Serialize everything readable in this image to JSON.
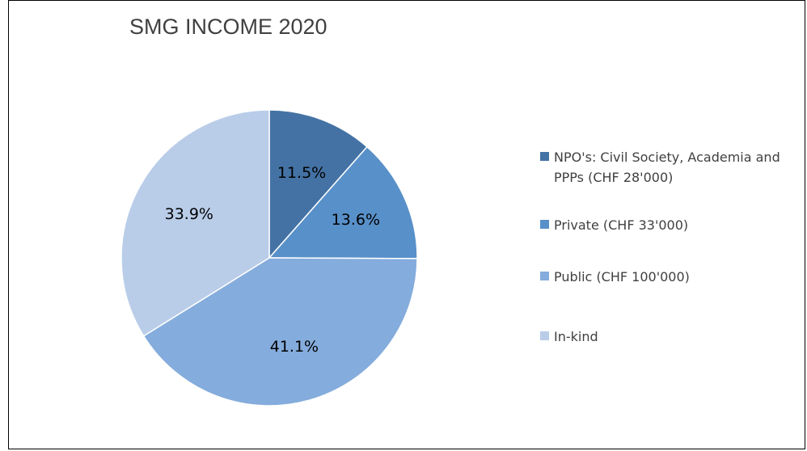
{
  "chart_data": {
    "type": "pie",
    "title": "SMG INCOME 2020",
    "slices": [
      {
        "label": "NPO's: Civil Society, Academia and PPPs (CHF 28'000)",
        "value": 11.5,
        "value_label": "11.5%",
        "color": "#4472a4"
      },
      {
        "label": "Private (CHF 33'000)",
        "value": 13.6,
        "value_label": "13.6%",
        "color": "#5890c9"
      },
      {
        "label": "Public (CHF 100'000)",
        "value": 41.1,
        "value_label": "41.1%",
        "color": "#84acdc"
      },
      {
        "label": "In-kind",
        "value": 33.9,
        "value_label": "33.9%",
        "color": "#b9cde9"
      }
    ],
    "legend_position": "right"
  }
}
